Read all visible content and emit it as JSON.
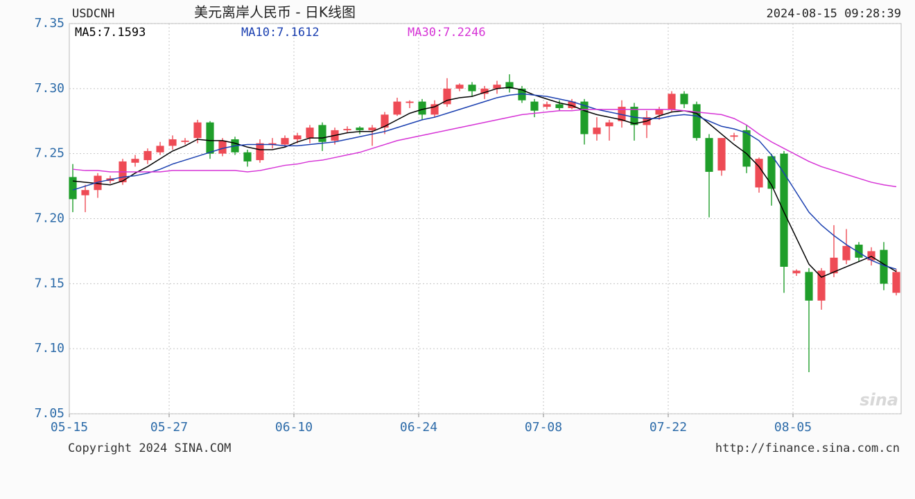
{
  "chart_data": {
    "type": "candlestick",
    "symbol": "USDCNH",
    "title": "美元离岸人民币 - 日K线图",
    "timestamp": "2024-08-15 09:28:39",
    "copyright": "Copyright 2024 SINA.COM",
    "url": "http://finance.sina.com.cn",
    "watermark": "sina",
    "categories": [
      "05-15",
      null,
      null,
      null,
      null,
      null,
      null,
      null,
      "05-27",
      null,
      null,
      null,
      null,
      null,
      null,
      null,
      null,
      null,
      "06-10",
      null,
      null,
      null,
      null,
      null,
      null,
      null,
      null,
      null,
      "06-24",
      null,
      null,
      null,
      null,
      null,
      null,
      null,
      null,
      null,
      "07-08",
      null,
      null,
      null,
      null,
      null,
      null,
      null,
      null,
      null,
      "07-22",
      null,
      null,
      null,
      null,
      null,
      null,
      null,
      null,
      null,
      "08-05",
      null,
      null,
      null,
      null,
      null,
      null,
      null,
      null
    ],
    "open": [
      7.232,
      7.218,
      7.222,
      7.229,
      7.228,
      7.243,
      7.245,
      7.251,
      7.256,
      7.259,
      7.262,
      7.274,
      7.25,
      7.261,
      7.251,
      7.245,
      7.257,
      7.257,
      7.261,
      7.262,
      7.272,
      7.26,
      7.268,
      7.27,
      7.268,
      7.27,
      7.28,
      7.289,
      7.29,
      7.28,
      7.288,
      7.3,
      7.303,
      7.296,
      7.3,
      7.305,
      7.3,
      7.29,
      7.286,
      7.288,
      7.285,
      7.29,
      7.265,
      7.271,
      7.275,
      7.286,
      7.272,
      7.28,
      7.284,
      7.296,
      7.288,
      7.262,
      7.237,
      7.263,
      7.268,
      7.224,
      7.248,
      7.25,
      7.158,
      7.159,
      7.137,
      7.158,
      7.168,
      7.18,
      7.168,
      7.176,
      7.143
    ],
    "high": [
      7.242,
      7.226,
      7.235,
      7.233,
      7.246,
      7.249,
      7.254,
      7.259,
      7.264,
      7.262,
      7.276,
      7.275,
      7.262,
      7.263,
      7.253,
      7.261,
      7.262,
      7.264,
      7.266,
      7.272,
      7.274,
      7.27,
      7.271,
      7.271,
      7.272,
      7.282,
      7.293,
      7.291,
      7.292,
      7.291,
      7.308,
      7.304,
      7.305,
      7.302,
      7.306,
      7.311,
      7.302,
      7.292,
      7.29,
      7.291,
      7.292,
      7.292,
      7.278,
      7.276,
      7.291,
      7.289,
      7.283,
      7.286,
      7.298,
      7.298,
      7.29,
      7.265,
      7.262,
      7.266,
      7.272,
      7.247,
      7.25,
      7.252,
      7.161,
      7.162,
      7.162,
      7.195,
      7.192,
      7.182,
      7.178,
      7.182,
      7.161
    ],
    "low": [
      7.205,
      7.205,
      7.216,
      7.227,
      7.226,
      7.24,
      7.242,
      7.249,
      7.253,
      7.257,
      7.258,
      7.246,
      7.248,
      7.249,
      7.24,
      7.243,
      7.254,
      7.255,
      7.258,
      7.258,
      7.252,
      7.257,
      7.266,
      7.265,
      7.256,
      7.265,
      7.279,
      7.285,
      7.276,
      7.278,
      7.286,
      7.298,
      7.294,
      7.292,
      7.296,
      7.297,
      7.289,
      7.278,
      7.284,
      7.283,
      7.284,
      7.257,
      7.26,
      7.26,
      7.27,
      7.26,
      7.262,
      7.276,
      7.282,
      7.285,
      7.26,
      7.201,
      7.233,
      7.26,
      7.235,
      7.22,
      7.21,
      7.143,
      7.156,
      7.082,
      7.13,
      7.155,
      7.165,
      7.167,
      7.164,
      7.145,
      7.141
    ],
    "close": [
      7.215,
      7.222,
      7.233,
      7.231,
      7.244,
      7.246,
      7.252,
      7.256,
      7.261,
      7.26,
      7.274,
      7.25,
      7.26,
      7.251,
      7.244,
      7.258,
      7.258,
      7.262,
      7.264,
      7.27,
      7.259,
      7.268,
      7.269,
      7.268,
      7.27,
      7.28,
      7.29,
      7.29,
      7.28,
      7.288,
      7.3,
      7.303,
      7.298,
      7.3,
      7.303,
      7.3,
      7.291,
      7.283,
      7.288,
      7.285,
      7.29,
      7.265,
      7.27,
      7.274,
      7.286,
      7.272,
      7.278,
      7.284,
      7.296,
      7.288,
      7.262,
      7.236,
      7.262,
      7.264,
      7.24,
      7.246,
      7.223,
      7.163,
      7.16,
      7.137,
      7.16,
      7.17,
      7.179,
      7.17,
      7.175,
      7.15,
      7.159
    ],
    "up_color": "#ee4b55",
    "down_color": "#1f9e2a",
    "series": [
      {
        "name": "MA5:7.1593",
        "color": "#000000",
        "values": [
          7.229,
          7.228,
          7.227,
          7.226,
          7.229,
          7.235,
          7.24,
          7.246,
          7.252,
          7.256,
          7.261,
          7.26,
          7.26,
          7.258,
          7.255,
          7.253,
          7.253,
          7.255,
          7.259,
          7.262,
          7.262,
          7.264,
          7.266,
          7.267,
          7.267,
          7.271,
          7.276,
          7.281,
          7.284,
          7.286,
          7.291,
          7.293,
          7.294,
          7.297,
          7.3,
          7.301,
          7.299,
          7.295,
          7.292,
          7.289,
          7.287,
          7.283,
          7.28,
          7.278,
          7.276,
          7.273,
          7.275,
          7.279,
          7.282,
          7.283,
          7.281,
          7.273,
          7.265,
          7.257,
          7.25,
          7.24,
          7.226,
          7.205,
          7.185,
          7.165,
          7.155,
          7.159,
          7.163,
          7.167,
          7.171,
          7.165,
          7.1593
        ]
      },
      {
        "name": "MA10:7.1612",
        "color": "#1a3fb0",
        "values": [
          7.222,
          7.225,
          7.228,
          7.23,
          7.232,
          7.233,
          7.235,
          7.238,
          7.242,
          7.245,
          7.248,
          7.251,
          7.254,
          7.256,
          7.257,
          7.257,
          7.257,
          7.256,
          7.256,
          7.257,
          7.258,
          7.259,
          7.261,
          7.263,
          7.265,
          7.267,
          7.27,
          7.273,
          7.276,
          7.278,
          7.281,
          7.284,
          7.287,
          7.29,
          7.293,
          7.295,
          7.296,
          7.295,
          7.294,
          7.292,
          7.29,
          7.287,
          7.284,
          7.282,
          7.28,
          7.278,
          7.277,
          7.277,
          7.279,
          7.28,
          7.279,
          7.275,
          7.271,
          7.269,
          7.266,
          7.26,
          7.249,
          7.235,
          7.22,
          7.205,
          7.195,
          7.187,
          7.18,
          7.174,
          7.168,
          7.164,
          7.1612
        ]
      },
      {
        "name": "MA30:7.2246",
        "color": "#d633d6",
        "values": [
          7.238,
          7.237,
          7.237,
          7.236,
          7.236,
          7.236,
          7.236,
          7.236,
          7.237,
          7.237,
          7.237,
          7.237,
          7.237,
          7.237,
          7.236,
          7.237,
          7.239,
          7.241,
          7.242,
          7.244,
          7.245,
          7.247,
          7.249,
          7.251,
          7.254,
          7.257,
          7.26,
          7.262,
          7.264,
          7.266,
          7.268,
          7.27,
          7.272,
          7.274,
          7.276,
          7.278,
          7.28,
          7.281,
          7.282,
          7.283,
          7.283,
          7.284,
          7.284,
          7.284,
          7.284,
          7.284,
          7.284,
          7.284,
          7.284,
          7.283,
          7.282,
          7.281,
          7.28,
          7.277,
          7.272,
          7.265,
          7.259,
          7.254,
          7.249,
          7.244,
          7.24,
          7.237,
          7.234,
          7.231,
          7.228,
          7.226,
          7.2246
        ]
      }
    ],
    "ylim": [
      7.05,
      7.35
    ],
    "yticks": [
      7.05,
      {
        "value": 7.1,
        "label": "7.10"
      },
      7.15,
      {
        "value": 7.2,
        "label": "7.20"
      },
      7.25,
      {
        "value": 7.3,
        "label": "7.30"
      },
      7.35
    ],
    "grid": true
  }
}
